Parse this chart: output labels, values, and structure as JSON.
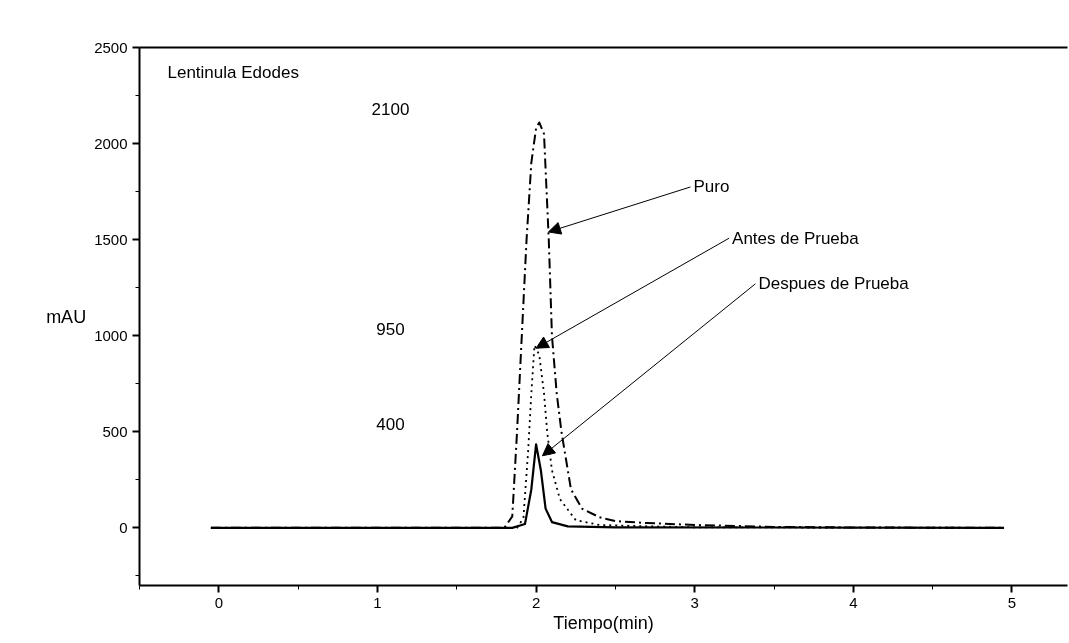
{
  "chart_data": {
    "type": "line",
    "title": "Lentinula Edodes",
    "xlabel": "Tiempo(min)",
    "ylabel": "mAU",
    "xlim": [
      -0.5,
      5.35
    ],
    "ylim": [
      -300,
      2500
    ],
    "xticks": [
      0,
      1,
      2,
      3,
      4,
      5
    ],
    "yticks": [
      0,
      500,
      1000,
      1500,
      2000,
      2500
    ],
    "grid": false,
    "series": [
      {
        "color": "#000000",
        "line_style": "dashdot",
        "x": [
          -0.05,
          1.8,
          1.85,
          1.88,
          1.91,
          1.94,
          1.97,
          2.0,
          2.02,
          2.05,
          2.08,
          2.1,
          2.13,
          2.16,
          2.22,
          2.29,
          2.4,
          2.5,
          2.7,
          3.0,
          3.5,
          4.0,
          4.95
        ],
        "values": [
          0,
          0,
          60,
          500,
          1000,
          1500,
          1900,
          2080,
          2110,
          2050,
          1500,
          1000,
          700,
          500,
          200,
          100,
          55,
          35,
          25,
          15,
          5,
          2,
          0
        ]
      },
      {
        "color": "#000000",
        "line_style": "dotted",
        "x": [
          -0.05,
          1.88,
          1.92,
          1.95,
          1.97,
          1.99,
          2.02,
          2.05,
          2.07,
          2.1,
          2.15,
          2.25,
          2.4,
          2.7,
          3.0,
          4.95
        ],
        "values": [
          0,
          0,
          50,
          400,
          700,
          950,
          900,
          700,
          500,
          300,
          150,
          40,
          15,
          8,
          3,
          0
        ]
      },
      {
        "color": "#000000",
        "line_style": "solid",
        "x": [
          -0.05,
          1.85,
          1.93,
          1.97,
          2.0,
          2.03,
          2.06,
          2.1,
          2.2,
          2.5,
          4.95
        ],
        "values": [
          0,
          0,
          20,
          200,
          435,
          300,
          100,
          30,
          8,
          3,
          0
        ]
      }
    ],
    "annotations": [
      "2100",
      "950",
      "400",
      {
        "text": "Puro",
        "x": 2.078,
        "y": 1540
      },
      {
        "text": "Antes de Prueba",
        "x": 2.0,
        "y": 935
      },
      {
        "text": "Despues de Prueba",
        "x": 2.04,
        "y": 375
      }
    ]
  }
}
